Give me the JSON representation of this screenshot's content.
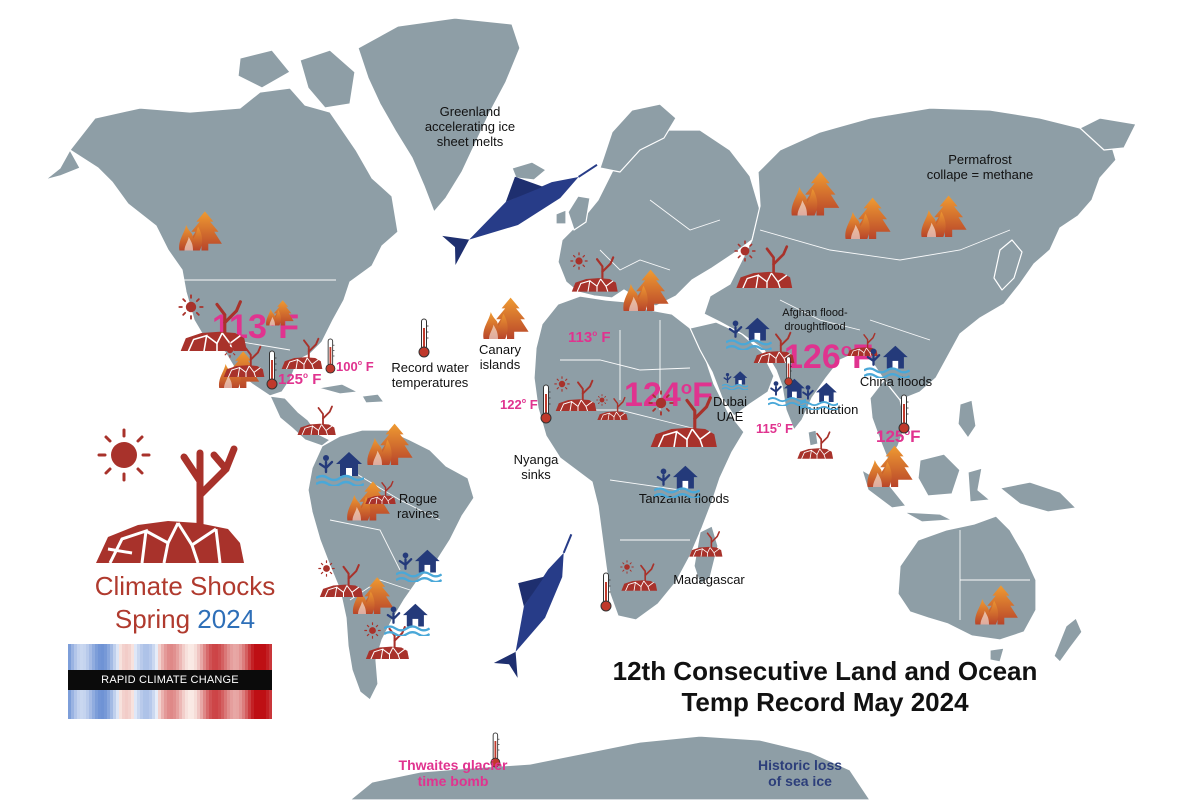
{
  "title": "12th Consecutive Land and Ocean Temp Record May 2024",
  "title_lines": [
    "12th Consecutive Land and Ocean",
    "Temp Record May 2024"
  ],
  "legend": {
    "title_line1": "Climate Shocks",
    "title_line2_word": "Spring",
    "title_line2_year": "2024",
    "stripe_label": "RAPID CLIMATE CHANGE",
    "title_color": "#b03a2e",
    "year_color": "#2e6fb8"
  },
  "colors": {
    "land": "#8e9ea6",
    "temperature": "#e0338f",
    "fire_top": "#e98a2a",
    "fire_bottom": "#b8452a",
    "drought": "#a8322b",
    "flood": "#243a7a",
    "water": "#4aa8d8",
    "sea_ice_text": "#2c3e7a"
  },
  "labels": {
    "greenland": [
      "Greenland",
      "accelerating ice",
      "sheet melts"
    ],
    "permafrost": [
      "Permafrost",
      "collape = methane"
    ],
    "afghan": [
      "Afghan flood-",
      "droughtflood"
    ],
    "record_water": [
      "Record water",
      "temperatures"
    ],
    "canary": [
      "Canary",
      "islands"
    ],
    "dubai": [
      "Dubai",
      "UAE"
    ],
    "china_floods": "China floods",
    "inundation": "Inundation",
    "nyanga": [
      "Nyanga",
      "sinks"
    ],
    "tanzania": "Tanzania floods",
    "rogue": [
      "Rogue",
      "ravines"
    ],
    "madagascar": "Madagascar"
  },
  "antarctica": {
    "thwaites": [
      "Thwaites glacier",
      "time bomb"
    ],
    "sea_ice": [
      "Historic loss",
      "of sea ice"
    ]
  },
  "temperatures": {
    "us_southwest": {
      "value": "113",
      "unit": "F"
    },
    "mexico": {
      "value": "125",
      "unit": " F"
    },
    "florida": {
      "value": "100",
      "unit": " F"
    },
    "mediterranean": {
      "value": "113",
      "unit": " F"
    },
    "west_africa": {
      "value": "122",
      "unit": " F"
    },
    "sahel": {
      "value": "124",
      "unit": "F"
    },
    "india_north": {
      "value": "126",
      "unit": "F"
    },
    "india_south": {
      "value": "115",
      "unit": " F"
    },
    "southeast_asia": {
      "value": "125",
      "unit": "F"
    }
  },
  "icons": {
    "fire": "wildfire-icon",
    "drought": "drought-icon",
    "flood": "flood-icon",
    "thermometer": "thermometer-icon",
    "marlin": "marlin-icon"
  }
}
